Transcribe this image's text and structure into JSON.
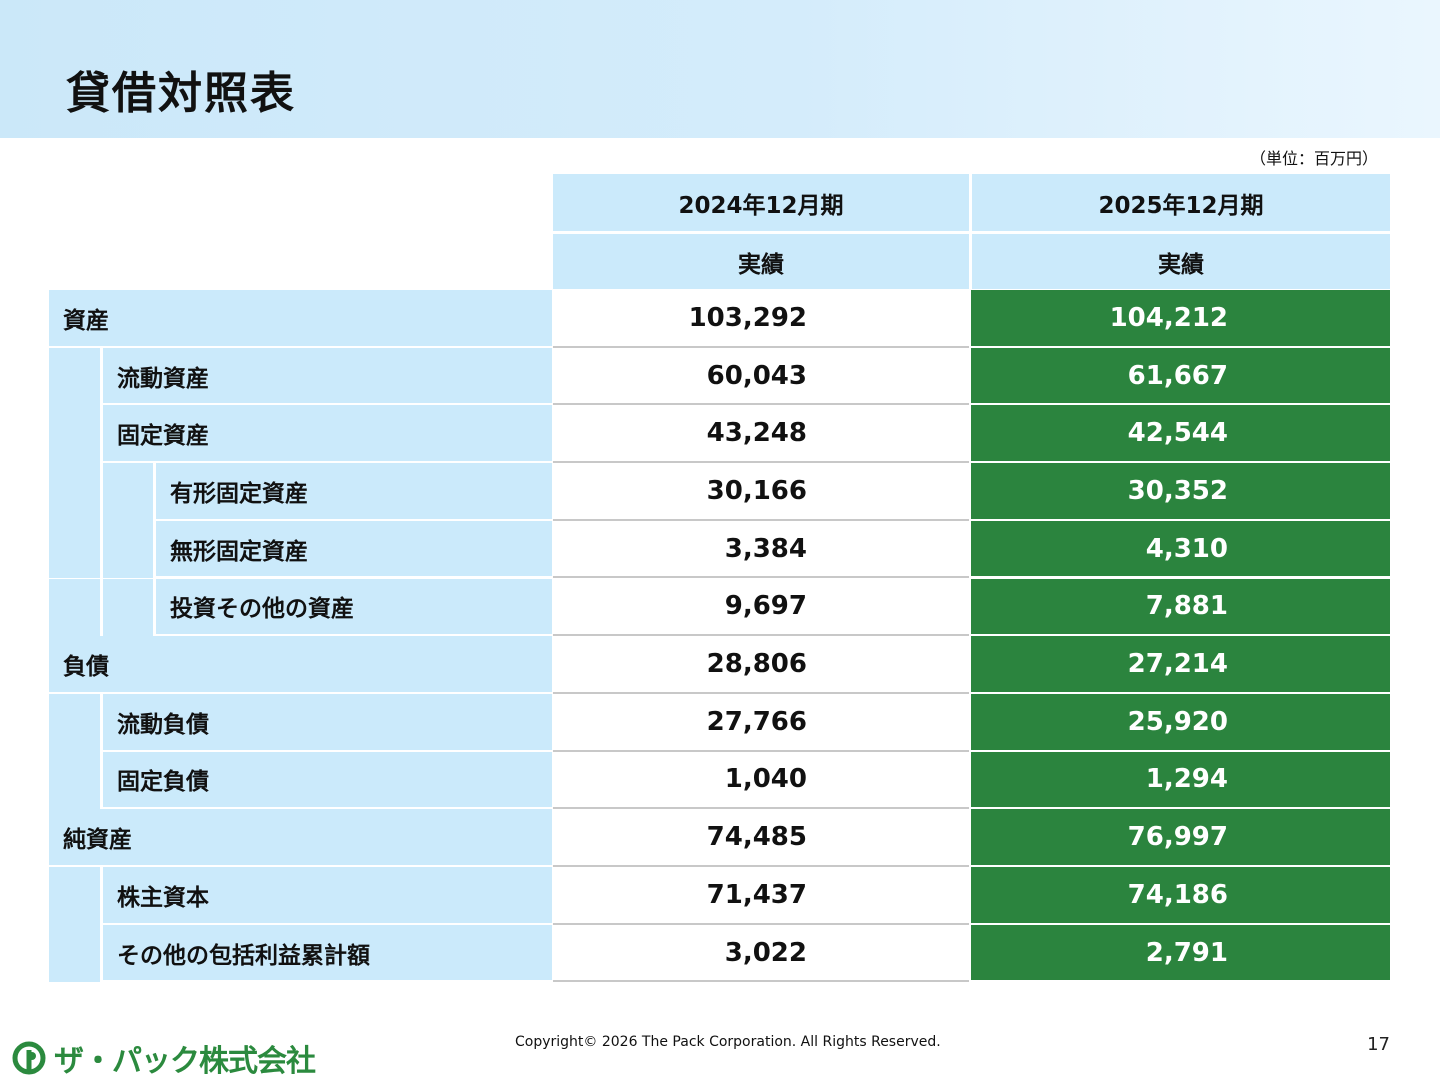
{
  "title": "貸借対照表",
  "unit_note": "（単位：百万円）",
  "columns": [
    {
      "period": "2024年12月期",
      "kind": "実績"
    },
    {
      "period": "2025年12月期",
      "kind": "実績"
    }
  ],
  "rows": [
    {
      "label": "資産",
      "level": 0,
      "v2024": "103,292",
      "v2025": "104,212"
    },
    {
      "label": "流動資産",
      "level": 1,
      "v2024": "60,043",
      "v2025": "61,667"
    },
    {
      "label": "固定資産",
      "level": 1,
      "v2024": "43,248",
      "v2025": "42,544"
    },
    {
      "label": "有形固定資産",
      "level": 2,
      "v2024": "30,166",
      "v2025": "30,352"
    },
    {
      "label": "無形固定資産",
      "level": 2,
      "v2024": "3,384",
      "v2025": "4,310"
    },
    {
      "label": "投資その他の資産",
      "level": 2,
      "v2024": "9,697",
      "v2025": "7,881"
    },
    {
      "label": "負債",
      "level": 0,
      "v2024": "28,806",
      "v2025": "27,214"
    },
    {
      "label": "流動負債",
      "level": 1,
      "v2024": "27,766",
      "v2025": "25,920"
    },
    {
      "label": "固定負債",
      "level": 1,
      "v2024": "1,040",
      "v2025": "1,294"
    },
    {
      "label": "純資産",
      "level": 0,
      "v2024": "74,485",
      "v2025": "76,997"
    },
    {
      "label": "株主資本",
      "level": 1,
      "v2024": "71,437",
      "v2025": "74,186"
    },
    {
      "label": "その他の包括利益累計額",
      "level": 1,
      "v2024": "3,022",
      "v2025": "2,791"
    }
  ],
  "footer": {
    "copyright": "Copyright© 2026 The Pack Corporation. All Rights Reserved.",
    "page_number": "17",
    "company_logo": "ザ・パック株式会社"
  },
  "colors": {
    "header_band": "#cbe8f9",
    "label_bg": "#cbeafb",
    "highlight_green": "#2b843e"
  }
}
